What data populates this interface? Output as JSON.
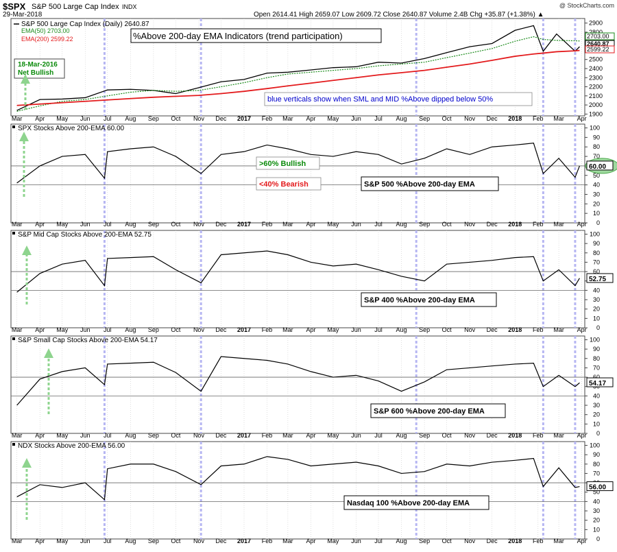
{
  "header": {
    "symbol": "$SPX",
    "name": "S&P 500 Large Cap Index",
    "exchange": "INDX",
    "date": "29-Mar-2018",
    "copyright": "@ StockCharts.com",
    "quote": "Open 2614.41  High 2659.07  Low 2609.72  Close 2640.87  Volume 2.4B  Chg +35.87 (+1.38%) ▲"
  },
  "axis_month_labels": [
    "Mar",
    "Apr",
    "May",
    "Jun",
    "Jul",
    "Aug",
    "Sep",
    "Oct",
    "Nov",
    "Dec",
    "2017",
    "Feb",
    "Mar",
    "Apr",
    "May",
    "Jun",
    "Jul",
    "Aug",
    "Sep",
    "Oct",
    "Nov",
    "Dec",
    "2018",
    "Feb",
    "Mar",
    "Apr"
  ],
  "colors": {
    "price": "#000000",
    "ema50": "#1a8a1a",
    "ema200": "#e31a1c",
    "bullish_text": "#0a8a0a",
    "bearish_text": "#e31a1c",
    "note_text": "#0000cc",
    "highlight_verticals": "#b6b6f2",
    "grid": "#666666"
  },
  "chart_data": [
    {
      "type": "line",
      "panel": "price",
      "series_label": "S&P 500 Large Cap Index (Daily) 2640.87",
      "ema50_label": "EMA(50) 2703.00",
      "ema200_label": "EMA(200) 2599.22",
      "title_box": "%Above 200-day EMA Indicators (trend participation)",
      "note": "blue verticals show when SML and MID %Above dipped below 50%",
      "annotation": [
        "18-Mar-2016",
        "Net Bullish"
      ],
      "last_tags": [
        "2703.00",
        "2640.87",
        "2599.22"
      ],
      "ylim": [
        1880,
        2950
      ],
      "y_ticks": [
        1900,
        2000,
        2100,
        2200,
        2300,
        2400,
        2500,
        2600,
        2700,
        2800,
        2900
      ],
      "x": [
        "2016-03",
        "2016-04",
        "2016-05",
        "2016-06",
        "2016-07",
        "2016-08",
        "2016-09",
        "2016-10",
        "2016-11",
        "2016-12",
        "2017-01",
        "2017-02",
        "2017-03",
        "2017-04",
        "2017-05",
        "2017-06",
        "2017-07",
        "2017-08",
        "2017-09",
        "2017-10",
        "2017-11",
        "2017-12",
        "2018-01",
        "2018-01-26",
        "2018-02-08",
        "2018-02-26",
        "2018-03-23",
        "2018-03-29"
      ],
      "series": [
        {
          "name": "S&P 500 Large Cap Index",
          "values": [
            1940,
            2060,
            2065,
            2080,
            2165,
            2172,
            2160,
            2125,
            2190,
            2255,
            2280,
            2350,
            2360,
            2385,
            2410,
            2420,
            2470,
            2460,
            2510,
            2575,
            2640,
            2675,
            2820,
            2872,
            2590,
            2780,
            2590,
            2640
          ]
        },
        {
          "name": "EMA(50)",
          "values": [
            1930,
            1990,
            2040,
            2060,
            2100,
            2140,
            2160,
            2150,
            2160,
            2200,
            2245,
            2300,
            2340,
            2360,
            2380,
            2400,
            2430,
            2450,
            2470,
            2520,
            2570,
            2620,
            2700,
            2750,
            2720,
            2710,
            2705,
            2703
          ]
        },
        {
          "name": "EMA(200)",
          "values": [
            1995,
            2010,
            2025,
            2040,
            2055,
            2070,
            2085,
            2095,
            2105,
            2125,
            2150,
            2180,
            2210,
            2240,
            2270,
            2300,
            2330,
            2355,
            2380,
            2415,
            2450,
            2490,
            2535,
            2560,
            2570,
            2585,
            2595,
            2599
          ]
        }
      ]
    },
    {
      "type": "line",
      "panel": "spx",
      "name": "SPX Stocks Above 200-EMA",
      "value_label": "60.00",
      "last_value": 60,
      "ylim": [
        0,
        104
      ],
      "y_ticks": [
        0,
        10,
        20,
        30,
        40,
        50,
        60,
        70,
        80,
        90,
        100
      ],
      "ref_lines": [
        60,
        40
      ],
      "bullish_label": ">60% Bullish",
      "bearish_label": "<40% Bearish",
      "caption": "S&P 500 %Above 200-day EMA",
      "x": [
        "2016-03",
        "2016-04",
        "2016-05",
        "2016-06",
        "2016-06-27",
        "2016-07",
        "2016-08",
        "2016-09",
        "2016-10",
        "2016-11-04",
        "2016-12",
        "2017-01",
        "2017-02",
        "2017-03",
        "2017-04",
        "2017-05",
        "2017-06",
        "2017-07",
        "2017-08",
        "2017-09",
        "2017-10",
        "2017-11",
        "2017-12",
        "2018-01",
        "2018-01-26",
        "2018-02-08",
        "2018-03",
        "2018-03-23",
        "2018-03-29"
      ],
      "values": [
        42,
        60,
        70,
        72,
        47,
        75,
        78,
        80,
        70,
        52,
        72,
        75,
        82,
        78,
        72,
        70,
        75,
        72,
        62,
        68,
        78,
        72,
        80,
        82,
        84,
        52,
        68,
        48,
        60
      ]
    },
    {
      "type": "line",
      "panel": "mid",
      "name": "S&P Mid Cap Stocks Above 200-EMA",
      "value_label": "52.75",
      "last_value": 52.75,
      "ylim": [
        0,
        104
      ],
      "y_ticks": [
        0,
        10,
        20,
        30,
        40,
        50,
        60,
        70,
        80,
        90,
        100
      ],
      "ref_lines": [
        60,
        40
      ],
      "caption": "S&P 400 %Above 200-day EMA",
      "x": [
        "2016-03",
        "2016-04",
        "2016-05",
        "2016-06",
        "2016-06-27",
        "2016-07",
        "2016-08",
        "2016-09",
        "2016-10",
        "2016-11-04",
        "2016-12",
        "2017-01",
        "2017-02",
        "2017-03",
        "2017-04",
        "2017-05",
        "2017-06",
        "2017-07",
        "2017-08",
        "2017-09",
        "2017-10",
        "2017-11",
        "2017-12",
        "2018-01",
        "2018-01-26",
        "2018-02-08",
        "2018-03",
        "2018-03-23",
        "2018-03-29"
      ],
      "values": [
        38,
        58,
        68,
        72,
        45,
        74,
        75,
        76,
        62,
        48,
        78,
        80,
        82,
        78,
        70,
        66,
        68,
        62,
        55,
        50,
        68,
        70,
        72,
        75,
        76,
        50,
        62,
        45,
        53
      ]
    },
    {
      "type": "line",
      "panel": "small",
      "name": "S&P Small Cap Stocks Above 200-EMA",
      "value_label": "54.17",
      "last_value": 54.17,
      "ylim": [
        0,
        104
      ],
      "y_ticks": [
        0,
        10,
        20,
        30,
        40,
        50,
        60,
        70,
        80,
        90,
        100
      ],
      "ref_lines": [
        60,
        40
      ],
      "caption": "S&P 600 %Above 200-day EMA",
      "x": [
        "2016-03",
        "2016-04",
        "2016-05",
        "2016-06",
        "2016-06-27",
        "2016-07",
        "2016-08",
        "2016-09",
        "2016-10",
        "2016-11-04",
        "2016-12",
        "2017-01",
        "2017-02",
        "2017-03",
        "2017-04",
        "2017-05",
        "2017-06",
        "2017-07",
        "2017-08",
        "2017-09",
        "2017-10",
        "2017-11",
        "2017-12",
        "2018-01",
        "2018-01-26",
        "2018-02-08",
        "2018-03",
        "2018-03-23",
        "2018-03-29"
      ],
      "values": [
        30,
        58,
        66,
        70,
        52,
        74,
        75,
        76,
        65,
        45,
        82,
        80,
        78,
        74,
        66,
        60,
        62,
        56,
        45,
        55,
        68,
        70,
        72,
        74,
        75,
        50,
        62,
        50,
        54
      ]
    },
    {
      "type": "line",
      "panel": "ndx",
      "name": "NDX Stocks Above 200-EMA",
      "value_label": "56.00",
      "last_value": 56,
      "ylim": [
        0,
        104
      ],
      "y_ticks": [
        0,
        10,
        20,
        30,
        40,
        50,
        60,
        70,
        80,
        90,
        100
      ],
      "ref_lines": [
        60,
        40
      ],
      "caption": "Nasdaq 100 %Above 200-day EMA",
      "x": [
        "2016-03",
        "2016-04",
        "2016-05",
        "2016-06",
        "2016-06-27",
        "2016-07",
        "2016-08",
        "2016-09",
        "2016-10",
        "2016-11-04",
        "2016-12",
        "2017-01",
        "2017-02",
        "2017-03",
        "2017-04",
        "2017-05",
        "2017-06",
        "2017-07",
        "2017-08",
        "2017-09",
        "2017-10",
        "2017-11",
        "2017-12",
        "2018-01",
        "2018-01-26",
        "2018-02-08",
        "2018-03",
        "2018-03-23",
        "2018-03-29"
      ],
      "values": [
        45,
        58,
        55,
        60,
        42,
        75,
        80,
        80,
        72,
        58,
        78,
        80,
        88,
        85,
        78,
        80,
        82,
        78,
        70,
        72,
        80,
        78,
        82,
        84,
        86,
        56,
        76,
        55,
        56
      ]
    }
  ]
}
